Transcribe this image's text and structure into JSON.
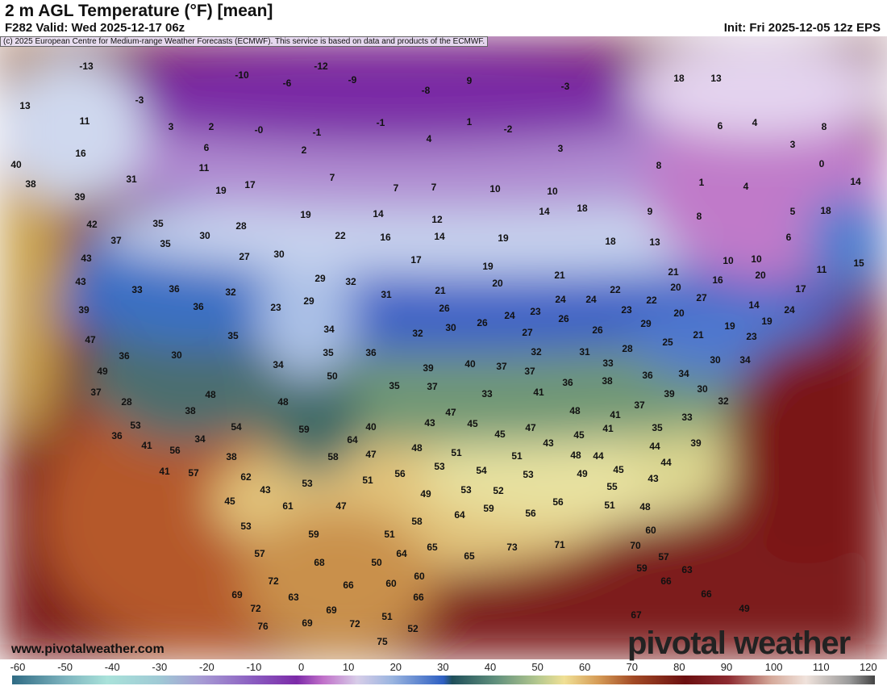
{
  "header": {
    "title": "2 m AGL Temperature (°F) [mean]",
    "valid": "F282 Valid: Wed 2025-12-17 06z",
    "init": "Init: Fri 2025-12-05 12z EPS",
    "credit": "(c) 2025 European Centre for Medium-range Weather Forecasts (ECMWF). This service is based on data and products of the ECMWF."
  },
  "footer": {
    "website": "www.pivotalweather.com",
    "logo": "pivotal weather"
  },
  "colorbar": {
    "unit": "°F",
    "ticks": [
      "-60",
      "-50",
      "-40",
      "-30",
      "-20",
      "-10",
      "0",
      "10",
      "20",
      "30",
      "40",
      "50",
      "60",
      "70",
      "80",
      "90",
      "100",
      "110",
      "120"
    ]
  },
  "temperature_labels": [
    "-13",
    "-12",
    "-10",
    "-6",
    "-9",
    "9",
    "-8",
    "-3",
    "18",
    "13",
    "13",
    "-3",
    "11",
    "3",
    "2",
    "-0",
    "-1",
    "-1",
    "1",
    "-2",
    "6",
    "4",
    "8",
    "16",
    "6",
    "2",
    "4",
    "3",
    "8",
    "3",
    "40",
    "11",
    "31",
    "7",
    "19",
    "17",
    "7",
    "7",
    "10",
    "10",
    "1",
    "4",
    "0",
    "14",
    "38",
    "39",
    "42",
    "35",
    "37",
    "30",
    "28",
    "19",
    "14",
    "12",
    "14",
    "18",
    "9",
    "8",
    "5",
    "18",
    "35",
    "27",
    "30",
    "22",
    "16",
    "14",
    "19",
    "18",
    "13",
    "6",
    "43",
    "17",
    "19",
    "10",
    "10",
    "15",
    "43",
    "33",
    "36",
    "32",
    "29",
    "32",
    "21",
    "20",
    "21",
    "21",
    "20",
    "16",
    "20",
    "11",
    "17",
    "39",
    "36",
    "23",
    "29",
    "31",
    "26",
    "26",
    "24",
    "23",
    "24",
    "24",
    "22",
    "23",
    "22",
    "27",
    "14",
    "24",
    "47",
    "35",
    "34",
    "32",
    "30",
    "27",
    "26",
    "26",
    "29",
    "20",
    "21",
    "19",
    "19",
    "23",
    "49",
    "36",
    "30",
    "34",
    "35",
    "36",
    "32",
    "31",
    "28",
    "25",
    "33",
    "30",
    "34",
    "37",
    "50",
    "35",
    "39",
    "37",
    "40",
    "37",
    "37",
    "36",
    "38",
    "36",
    "34",
    "28",
    "48",
    "48",
    "33",
    "41",
    "39",
    "30",
    "32",
    "38",
    "53",
    "48",
    "41",
    "37",
    "33",
    "35",
    "36",
    "54",
    "34",
    "59",
    "40",
    "43",
    "47",
    "45",
    "45",
    "47",
    "45",
    "41",
    "41",
    "56",
    "64",
    "43",
    "44",
    "39",
    "38",
    "58",
    "47",
    "48",
    "51",
    "51",
    "48",
    "44",
    "44",
    "41",
    "57",
    "62",
    "56",
    "53",
    "54",
    "53",
    "49",
    "45",
    "43",
    "43",
    "53",
    "51",
    "52",
    "53",
    "55",
    "45",
    "61",
    "47",
    "49",
    "56",
    "51",
    "48",
    "53",
    "64",
    "59",
    "56",
    "58",
    "59",
    "51",
    "60",
    "57",
    "64",
    "65",
    "65",
    "73",
    "71",
    "70",
    "57",
    "68",
    "50",
    "59",
    "63",
    "72",
    "66",
    "60",
    "60",
    "66",
    "69",
    "63",
    "66",
    "66",
    "72",
    "69",
    "49",
    "76",
    "69",
    "72",
    "51",
    "52",
    "67",
    "75",
    "51"
  ]
}
